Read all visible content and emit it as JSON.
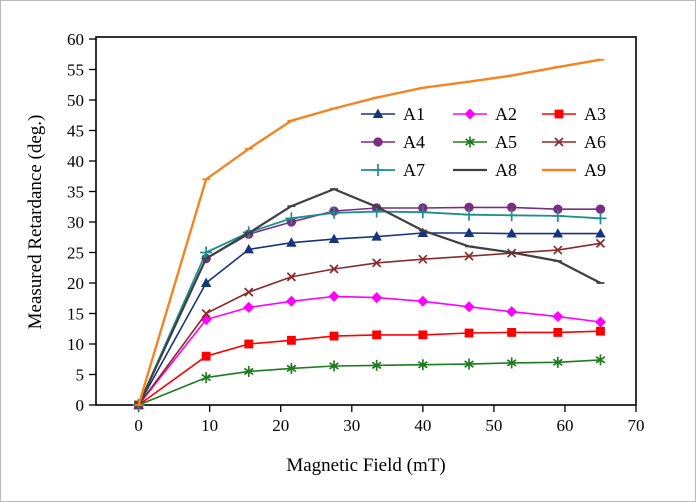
{
  "chart_data": {
    "type": "line",
    "title": "",
    "xlabel": "Magnetic Field (mT)",
    "ylabel": "Measured Retardance  (deg.)",
    "xlim": [
      -6,
      70
    ],
    "ylim": [
      0,
      60
    ],
    "xticks": [
      0,
      10,
      20,
      30,
      40,
      50,
      60,
      70
    ],
    "yticks": [
      0,
      5,
      10,
      15,
      20,
      25,
      30,
      35,
      40,
      45,
      50,
      55,
      60
    ],
    "grid": false,
    "legend_position": "inside-top-right",
    "x": [
      0,
      9.5,
      15.5,
      21.5,
      27.5,
      33.5,
      40,
      46.5,
      52.5,
      59,
      65
    ],
    "series": [
      {
        "name": "A1",
        "color": "#17357F",
        "marker": "triangle",
        "line_width": 1.6,
        "marker_size": 5.5,
        "values": [
          0,
          20,
          25.5,
          26.6,
          27.2,
          27.6,
          28.2,
          28.2,
          28.1,
          28.1,
          28.1
        ]
      },
      {
        "name": "A2",
        "color": "#FF00FF",
        "marker": "diamond",
        "line_width": 1.6,
        "marker_size": 5.5,
        "values": [
          0,
          14,
          16,
          17,
          17.8,
          17.6,
          17,
          16.1,
          15.3,
          14.5,
          13.6
        ]
      },
      {
        "name": "A3",
        "color": "#FF0000",
        "marker": "square",
        "line_width": 1.6,
        "marker_size": 5.2,
        "values": [
          0,
          8,
          10,
          10.6,
          11.3,
          11.5,
          11.5,
          11.8,
          11.9,
          11.9,
          12.1
        ]
      },
      {
        "name": "A4",
        "color": "#7B2C83",
        "marker": "circle",
        "line_width": 1.6,
        "marker_size": 5.5,
        "values": [
          0,
          24,
          28,
          30,
          31.8,
          32.3,
          32.3,
          32.4,
          32.4,
          32.1,
          32.1
        ]
      },
      {
        "name": "A5",
        "color": "#1E7B1E",
        "marker": "asterisk",
        "line_width": 1.6,
        "marker_size": 5.5,
        "values": [
          0,
          4.5,
          5.5,
          6,
          6.4,
          6.5,
          6.6,
          6.7,
          6.9,
          7,
          7.4
        ]
      },
      {
        "name": "A6",
        "color": "#8B2A2A",
        "marker": "x",
        "line_width": 1.6,
        "marker_size": 5,
        "values": [
          0,
          15,
          18.5,
          21,
          22.3,
          23.3,
          23.9,
          24.4,
          24.9,
          25.4,
          26.5
        ]
      },
      {
        "name": "A7",
        "color": "#1B8F8F",
        "marker": "plus",
        "line_width": 1.8,
        "marker_size": 6,
        "values": [
          0,
          25,
          28.3,
          30.6,
          31.5,
          31.7,
          31.6,
          31.2,
          31.1,
          31,
          30.6
        ]
      },
      {
        "name": "A8",
        "color": "#404040",
        "marker": "dash",
        "line_width": 2.2,
        "marker_size": 4,
        "values": [
          0,
          24,
          28.2,
          32.6,
          35.4,
          32.5,
          28.6,
          26,
          25,
          23.6,
          20
        ]
      },
      {
        "name": "A9",
        "color": "#F28522",
        "marker": "dash",
        "line_width": 2.4,
        "marker_size": 4,
        "values": [
          0,
          37,
          42,
          46.6,
          48.6,
          50.4,
          52,
          53,
          54,
          55.4,
          56.6
        ]
      }
    ]
  }
}
